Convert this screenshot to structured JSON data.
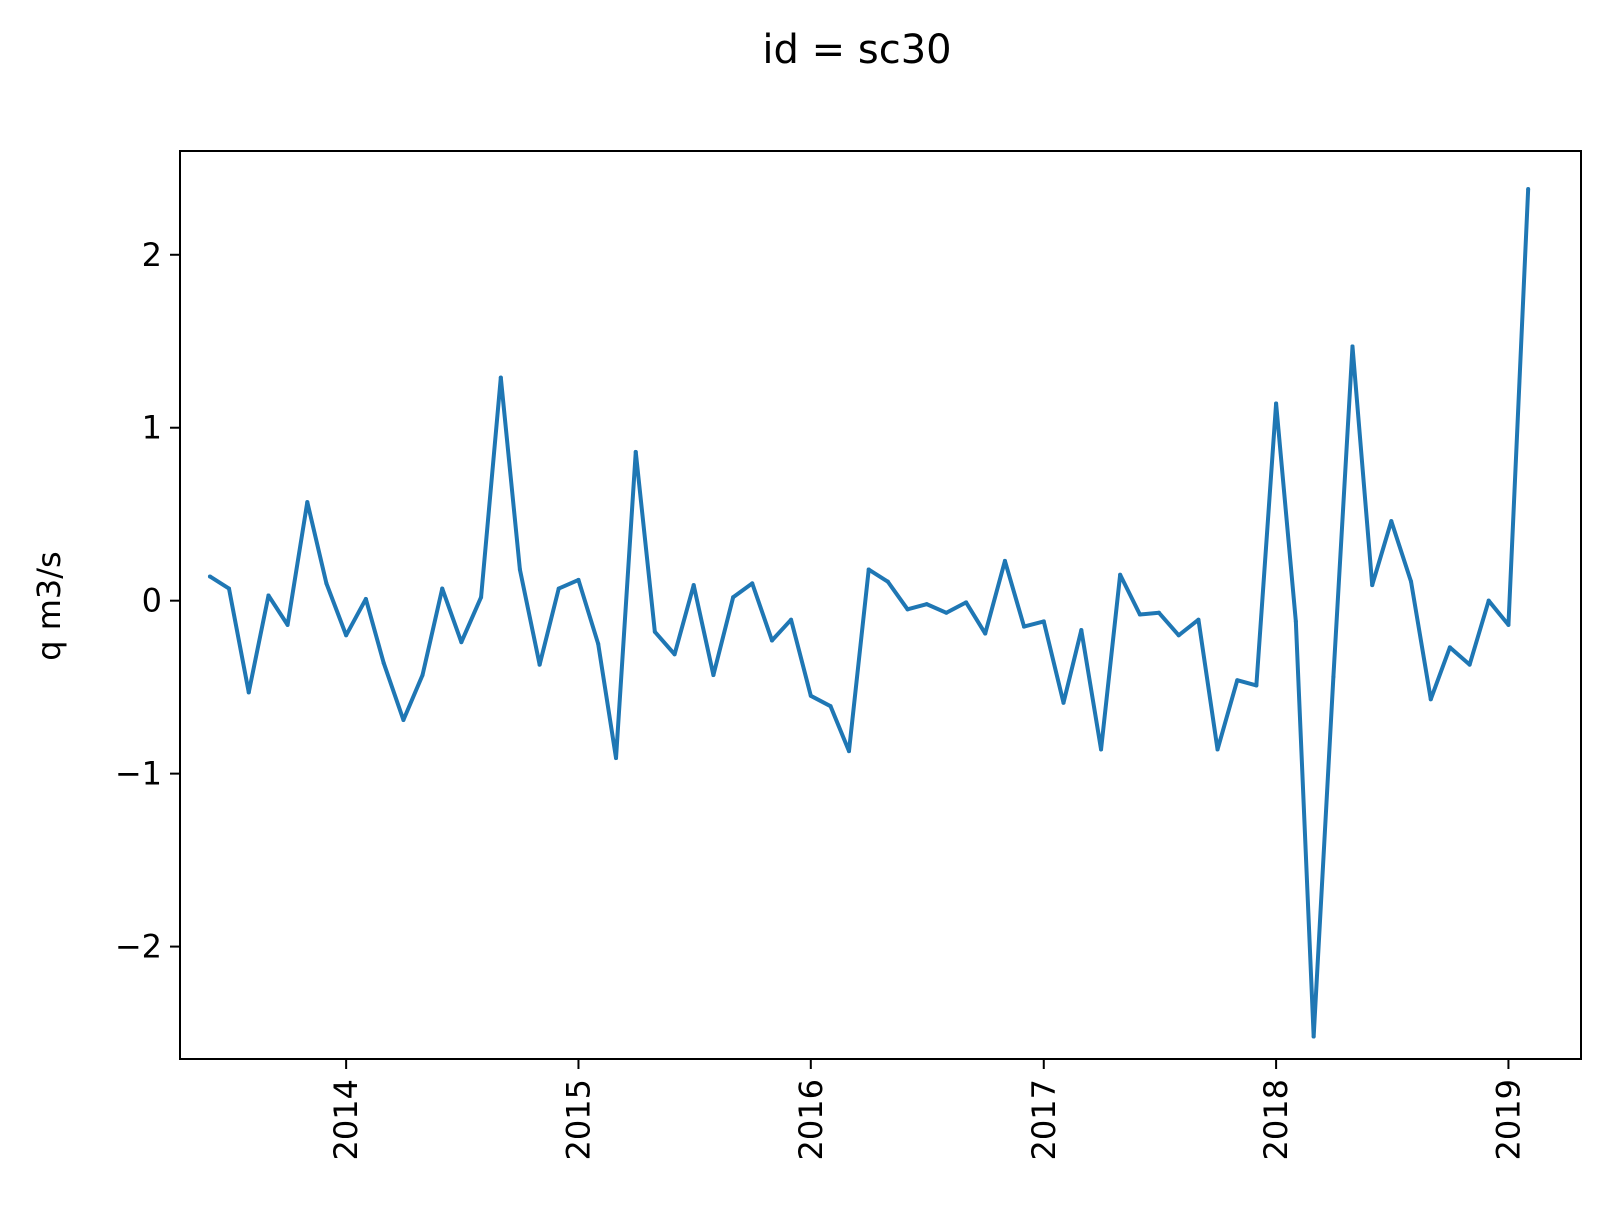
{
  "chart_data": {
    "type": "line",
    "title": "id = sc30",
    "xlabel": "",
    "ylabel": "q m3/s",
    "x_ticks": [
      "2014",
      "2015",
      "2016",
      "2017",
      "2018",
      "2019"
    ],
    "y_ticks": [
      "2",
      "1",
      "0",
      "−1",
      "−2"
    ],
    "y_tick_values": [
      2,
      1,
      0,
      -1,
      -2
    ],
    "xlim": [
      "2013-04-15",
      "2019-04-25"
    ],
    "ylim": [
      -2.65,
      2.6
    ],
    "grid": false,
    "colors": {
      "line": "#1f77b4"
    },
    "series": [
      {
        "x": [
          "2013-06",
          "2013-07",
          "2013-08",
          "2013-09",
          "2013-10",
          "2013-11",
          "2013-12",
          "2014-01",
          "2014-02",
          "2014-03",
          "2014-04",
          "2014-05",
          "2014-06",
          "2014-07",
          "2014-08",
          "2014-09",
          "2014-10",
          "2014-11",
          "2014-12",
          "2015-01",
          "2015-02",
          "2015-03",
          "2015-04",
          "2015-05",
          "2015-06",
          "2015-07",
          "2015-08",
          "2015-09",
          "2015-10",
          "2015-11",
          "2015-12",
          "2016-01",
          "2016-02",
          "2016-03",
          "2016-04",
          "2016-05",
          "2016-06",
          "2016-07",
          "2016-08",
          "2016-09",
          "2016-10",
          "2016-11",
          "2016-12",
          "2017-01",
          "2017-02",
          "2017-03",
          "2017-04",
          "2017-05",
          "2017-06",
          "2017-07",
          "2017-08",
          "2017-09",
          "2017-10",
          "2017-11",
          "2017-12",
          "2018-01",
          "2018-02",
          "2018-03",
          "2018-04",
          "2018-05",
          "2018-06",
          "2018-07",
          "2018-08",
          "2018-09",
          "2018-10",
          "2018-11",
          "2018-12",
          "2019-01",
          "2019-02"
        ],
        "values": [
          0.14,
          0.07,
          -0.53,
          0.03,
          -0.14,
          0.57,
          0.1,
          -0.2,
          0.01,
          -0.36,
          -0.69,
          -0.43,
          0.07,
          -0.24,
          0.02,
          1.29,
          0.18,
          -0.37,
          0.07,
          0.12,
          -0.25,
          -0.91,
          0.86,
          -0.18,
          -0.31,
          0.09,
          -0.43,
          0.02,
          0.1,
          -0.23,
          -0.11,
          -0.55,
          -0.61,
          -0.87,
          0.18,
          0.11,
          -0.05,
          -0.02,
          -0.07,
          -0.01,
          -0.19,
          0.23,
          -0.15,
          -0.12,
          -0.59,
          -0.17,
          -0.86,
          0.15,
          -0.08,
          -0.07,
          -0.2,
          -0.11,
          -0.86,
          -0.46,
          -0.49,
          1.14,
          -0.12,
          -2.52,
          -0.44,
          1.47,
          0.09,
          0.46,
          0.11,
          -0.57,
          -0.27,
          -0.37,
          0.0,
          -0.14,
          2.38
        ]
      }
    ]
  }
}
